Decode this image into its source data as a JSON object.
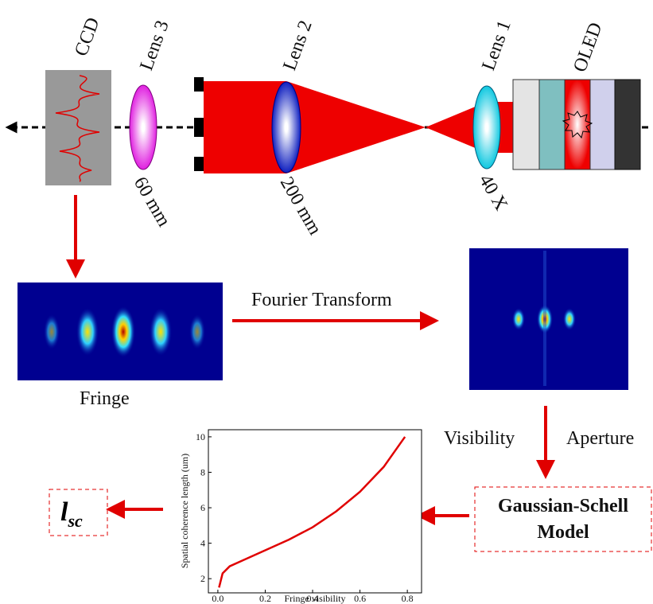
{
  "labels": {
    "ccd": "CCD",
    "lens3": "Lens 3",
    "lens2": "Lens 2",
    "lens1": "Lens 1",
    "oled": "OLED",
    "focal3": "60 mm",
    "focal2": "200 mm",
    "focal1": "40 X",
    "transform": "Fourier Transform",
    "fringe": "Fringe",
    "visibility": "Visibility",
    "aperture": "Aperture",
    "model_line1": "Gaussian-Schell",
    "model_line2": "Model",
    "result_symbol": "l",
    "result_subscript": "sc"
  },
  "chart_data": {
    "type": "line",
    "xlabel": "Fringe visibility",
    "ylabel": "Spatial coherence length (um)",
    "x": [
      0.005,
      0.02,
      0.05,
      0.1,
      0.2,
      0.3,
      0.4,
      0.5,
      0.6,
      0.7,
      0.79
    ],
    "series": [
      {
        "color": "#e00000",
        "values": [
          1.5,
          2.3,
          2.7,
          3.0,
          3.6,
          4.2,
          4.9,
          5.8,
          6.9,
          8.3,
          10.0
        ]
      }
    ],
    "xlim": [
      -0.04,
      0.86
    ],
    "ylim": [
      1.2,
      10.4
    ],
    "xticks": [
      {
        "value": 0,
        "label": "0.0"
      },
      0.2,
      0.4,
      0.6,
      0.8
    ],
    "yticks": [
      2,
      4,
      6,
      8,
      10
    ]
  }
}
